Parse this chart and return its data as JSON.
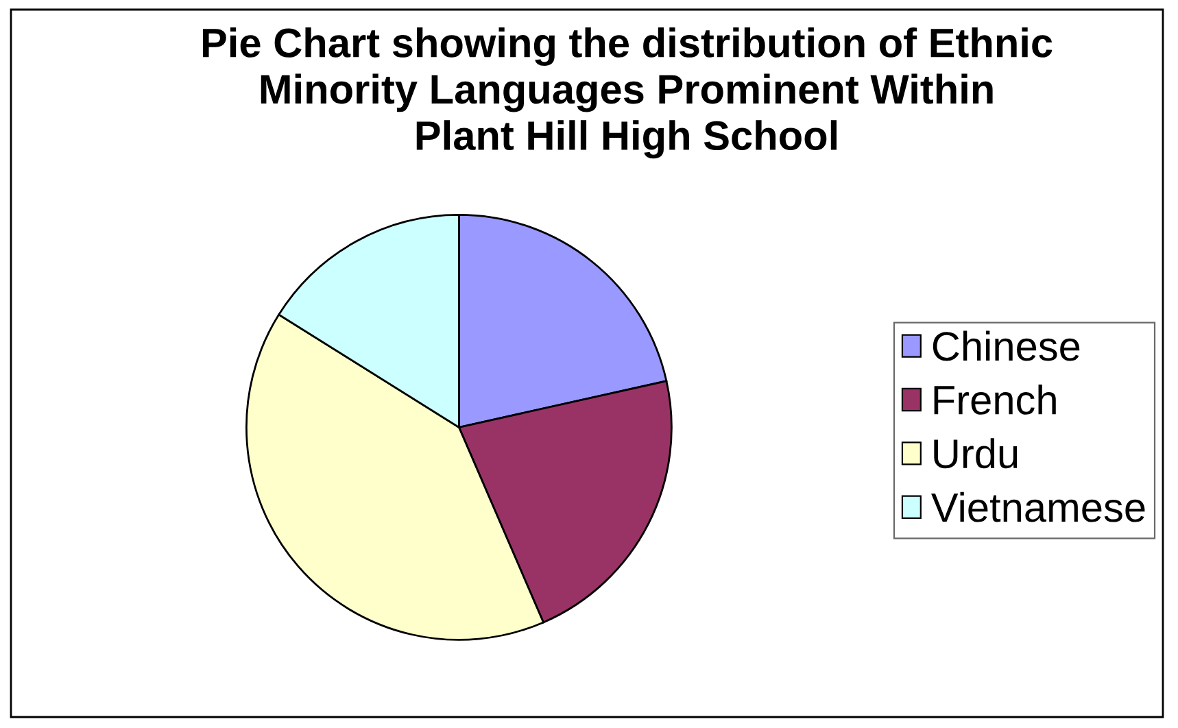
{
  "chart_data": {
    "type": "pie",
    "title": "Pie Chart showing the distribution of Ethnic\nMinority Languages Prominent Within\nPlant Hill High School",
    "categories": [
      "Chinese",
      "French",
      "Urdu",
      "Vietnamese"
    ],
    "values": [
      21.5,
      22,
      40.4,
      16.1
    ],
    "colors": [
      "#9999ff",
      "#993366",
      "#ffffcc",
      "#ccffff"
    ],
    "legend": "right"
  }
}
